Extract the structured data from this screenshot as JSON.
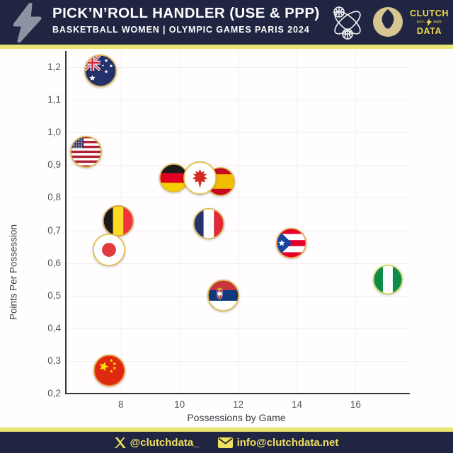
{
  "header": {
    "title": "PICK’N’ROLL HANDLER (USE & PPP)",
    "subtitle": "BASKETBALL WOMEN | OLYMPIC GAMES PARIS 2024",
    "logo": {
      "word_top": "CLUTCH",
      "est_left": "EST.",
      "est_right": "2020",
      "word_bottom": "DATA"
    },
    "colors": {
      "bar_bg": "#202642",
      "accent_yellow": "#f1d94d",
      "divider_yellow": "#ece472",
      "bolt_gray": "#8d93a3"
    }
  },
  "footer": {
    "twitter_handle": "@clutchdata_",
    "email": "info@clutchdata.net"
  },
  "chart_data": {
    "type": "scatter",
    "xlabel": "Possessions by Game",
    "ylabel": "Points Per Possession",
    "xlim": [
      6.1,
      17.8
    ],
    "ylim": [
      0.2,
      1.25
    ],
    "x_ticks": [
      8,
      10,
      12,
      14,
      16
    ],
    "x_tick_labels": [
      "8",
      "10",
      "12",
      "14",
      "16"
    ],
    "y_ticks": [
      1.2,
      1.1,
      1.0,
      0.9,
      0.8,
      0.7,
      0.6,
      0.5,
      0.4,
      0.3,
      0.2
    ],
    "y_tick_labels": [
      "1,2",
      "1,1",
      "1,0",
      "0,9",
      "0,8",
      "0,7",
      "0,6",
      "0,5",
      "0,4",
      "0,3",
      "0,2"
    ],
    "grid": true,
    "marker_style": "circular-flag-with-gold-ring",
    "points": [
      {
        "team": "United States",
        "code": "usa",
        "x": 6.8,
        "y": 0.94,
        "size": 45,
        "ring": "#ddb84e"
      },
      {
        "team": "Australia",
        "code": "aus",
        "x": 7.3,
        "y": 1.19,
        "size": 46,
        "ring": "#ddb84e"
      },
      {
        "team": "Germany",
        "code": "ger",
        "x": 9.8,
        "y": 0.86,
        "size": 41,
        "ring": "#ddb84e"
      },
      {
        "team": "Spain",
        "code": "esp",
        "x": 11.4,
        "y": 0.85,
        "size": 41,
        "ring": "#ddb84e"
      },
      {
        "team": "Canada",
        "code": "can",
        "x": 10.7,
        "y": 0.86,
        "size": 47,
        "ring": "#e3c155"
      },
      {
        "team": "Belgium",
        "code": "bel",
        "x": 7.9,
        "y": 0.73,
        "size": 44,
        "ring": "#dd9c45"
      },
      {
        "team": "Japan",
        "code": "jpn",
        "x": 7.6,
        "y": 0.64,
        "size": 46,
        "ring": "#e3c155"
      },
      {
        "team": "France",
        "code": "fra",
        "x": 11.0,
        "y": 0.72,
        "size": 44,
        "ring": "#ddb84e"
      },
      {
        "team": "Puerto Rico",
        "code": "pur",
        "x": 13.8,
        "y": 0.66,
        "size": 43,
        "ring": "#ed9f3d"
      },
      {
        "team": "Nigeria",
        "code": "ngr",
        "x": 17.1,
        "y": 0.55,
        "size": 42,
        "ring": "#c8d94e"
      },
      {
        "team": "Serbia",
        "code": "srb",
        "x": 11.5,
        "y": 0.5,
        "size": 45,
        "ring": "#ddb84e"
      },
      {
        "team": "China",
        "code": "chn",
        "x": 7.6,
        "y": 0.27,
        "size": 45,
        "ring": "#ec9f3d"
      }
    ]
  }
}
